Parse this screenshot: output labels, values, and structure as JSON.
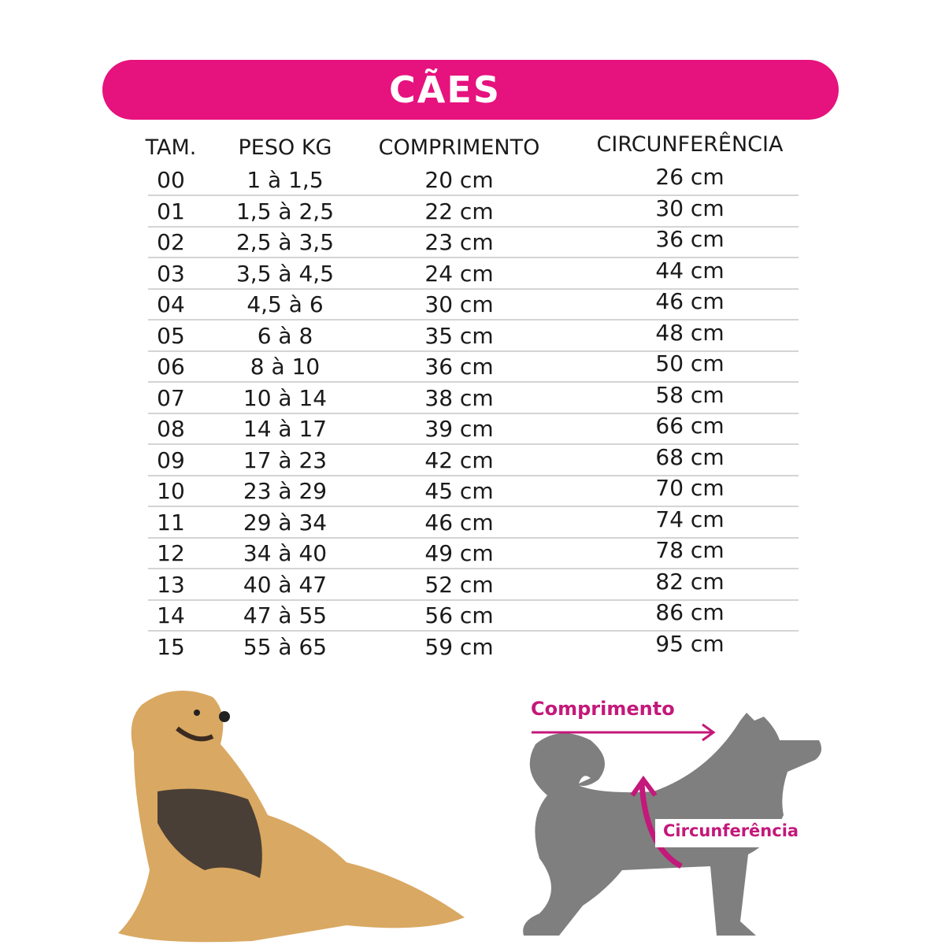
{
  "title": "CÃES",
  "accent_color": "#e6127e",
  "columns": [
    "TAM.",
    "PESO KG",
    "COMPRIMENTO",
    "CIRCUNFERÊNCIA"
  ],
  "rows": [
    [
      "00",
      "1 à 1,5",
      "20 cm",
      "26 cm"
    ],
    [
      "01",
      "1,5 à 2,5",
      "22 cm",
      "30 cm"
    ],
    [
      "02",
      "2,5 à 3,5",
      "23 cm",
      "36 cm"
    ],
    [
      "03",
      "3,5 à 4,5",
      "24 cm",
      "44 cm"
    ],
    [
      "04",
      "4,5 à 6",
      "30 cm",
      "46 cm"
    ],
    [
      "05",
      "6 à 8",
      "35 cm",
      "48 cm"
    ],
    [
      "06",
      "8 à 10",
      "36 cm",
      "50 cm"
    ],
    [
      "07",
      "10 à 14",
      "38 cm",
      "58 cm"
    ],
    [
      "08",
      "14 à 17",
      "39 cm",
      "66 cm"
    ],
    [
      "09",
      "17 à 23",
      "42 cm",
      "68 cm"
    ],
    [
      "10",
      "23 à 29",
      "45 cm",
      "70 cm"
    ],
    [
      "11",
      "29 à 34",
      "46 cm",
      "74 cm"
    ],
    [
      "12",
      "34 à 40",
      "49 cm",
      "78 cm"
    ],
    [
      "13",
      "40 à 47",
      "52 cm",
      "82 cm"
    ],
    [
      "14",
      "47 à 55",
      "56 cm",
      "86 cm"
    ],
    [
      "15",
      "55 à 65",
      "59 cm",
      "95 cm"
    ]
  ],
  "diagram": {
    "length_label": "Comprimento",
    "girth_label": "Circunferência"
  }
}
